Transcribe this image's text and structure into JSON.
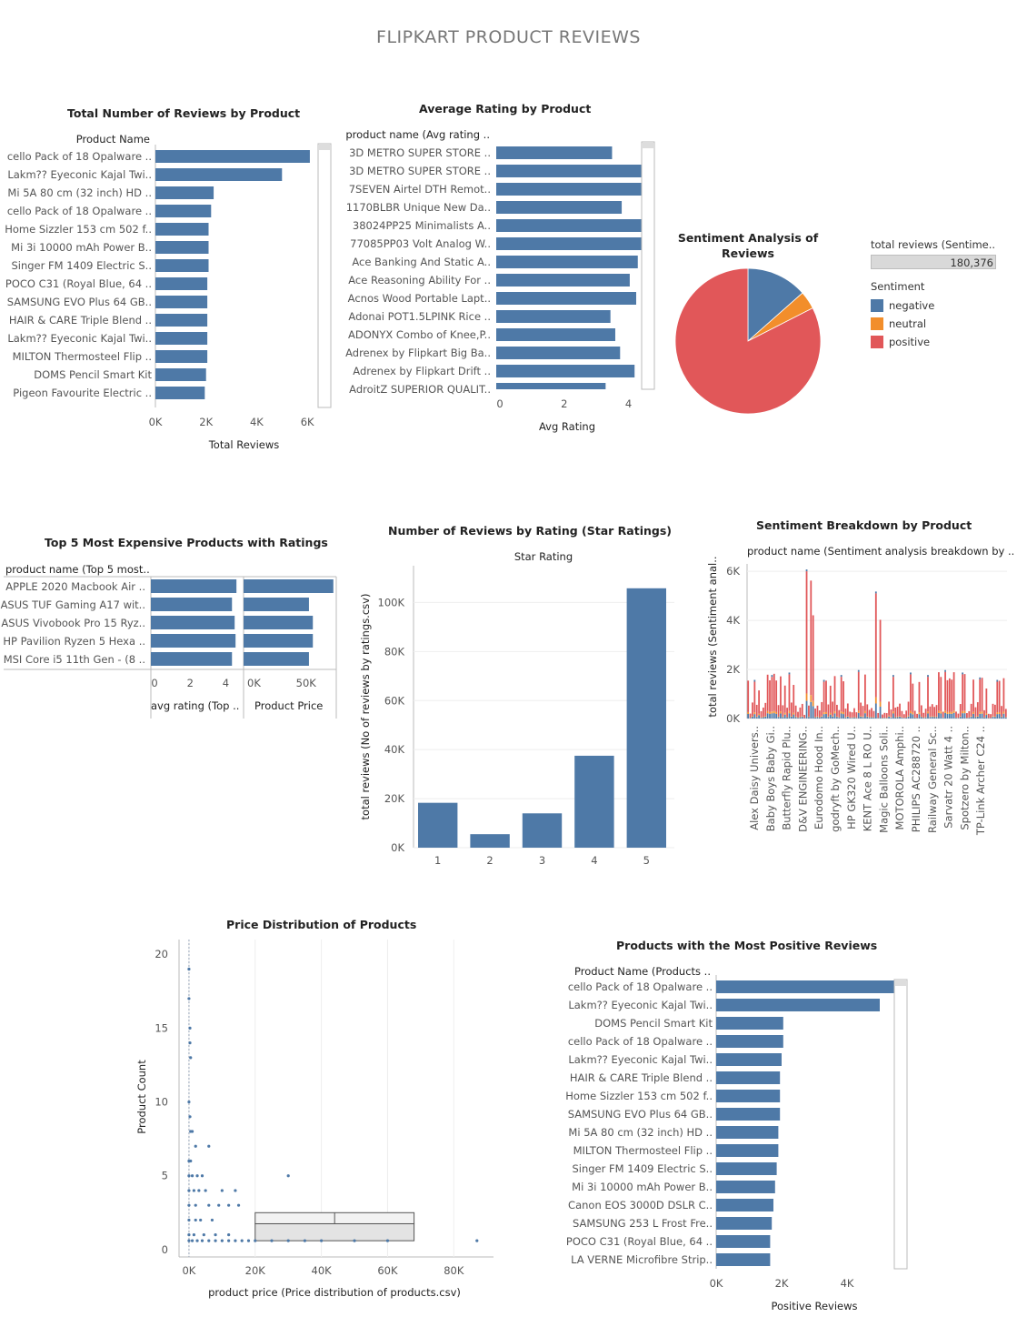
{
  "dashboard": {
    "title": "FLIPKART PRODUCT REVIEWS"
  },
  "colors": {
    "bar": "#4e79a7",
    "negative": "#4e79a7",
    "neutral": "#f28e2b",
    "positive": "#e15759",
    "axis": "#bbbbbb",
    "grid": "#eeeeee",
    "text": "#555555"
  },
  "chart_data": [
    {
      "id": "total-reviews",
      "type": "bar",
      "orientation": "horizontal",
      "title": "Total Number of Reviews by Product",
      "category_header": "Product Name",
      "xlabel": "Total Reviews",
      "xlim": [
        0,
        7000
      ],
      "xticks": [
        "0K",
        "2K",
        "4K",
        "6K"
      ],
      "xtick_values": [
        0,
        2000,
        4000,
        6000
      ],
      "categories": [
        "cello Pack of 18 Opalware ..",
        "Lakm?? Eyeconic Kajal Twi..",
        "Mi 5A 80 cm (32 inch) HD ..",
        "cello Pack of 18 Opalware ..",
        "Home Sizzler 153 cm 502 f..",
        "Mi 3i 10000 mAh Power B..",
        "Singer FM 1409 Electric S..",
        "POCO C31 (Royal Blue, 64 ..",
        "SAMSUNG EVO Plus 64 GB..",
        "HAIR & CARE Triple Blend ..",
        "Lakm?? Eyeconic Kajal Twi..",
        "MILTON Thermosteel Flip ..",
        "DOMS Pencil Smart Kit",
        "Pigeon Favourite Electric .."
      ],
      "values": [
        6100,
        5000,
        2300,
        2200,
        2100,
        2100,
        2100,
        2050,
        2050,
        2050,
        2050,
        2050,
        2000,
        1950
      ]
    },
    {
      "id": "avg-rating",
      "type": "bar",
      "orientation": "horizontal",
      "title": "Average Rating by Product",
      "category_header": "product name (Avg rating ..",
      "xlabel": "Avg Rating",
      "xlim": [
        0,
        5
      ],
      "xticks": [
        "0",
        "2",
        "4"
      ],
      "xtick_values": [
        0,
        2,
        4
      ],
      "categories": [
        "3D METRO SUPER STORE ..",
        "3D METRO SUPER STORE ..",
        "7SEVEN Airtel DTH Remot..",
        "1170BLBR Unique New Da..",
        "38024PP25 Minimalists A..",
        "77085PP03 Volt Analog W..",
        "Ace Banking And Static A..",
        "Ace Reasoning Ability For ..",
        "Acnos Wood Portable Lapt..",
        "Adonai POT1.5LPINK Rice ..",
        "ADONYX Combo of Knee,P..",
        "Adrenex by Flipkart Big Ba..",
        "Adrenex by Flipkart Drift ..",
        "AdroitZ SUPERIOR QUALIT.."
      ],
      "values": [
        3.6,
        4.7,
        4.6,
        3.9,
        4.8,
        4.65,
        4.4,
        4.15,
        4.35,
        3.55,
        3.7,
        3.85,
        4.3,
        3.4
      ]
    },
    {
      "id": "sentiment-pie",
      "type": "pie",
      "title": "Sentiment Analysis of Reviews",
      "legend_title": "Sentiment",
      "total_label": "total reviews (Sentime..",
      "total_value": "180,376",
      "categories": [
        "negative",
        "neutral",
        "positive"
      ],
      "values": [
        13.5,
        4.0,
        82.5
      ],
      "legend_position": "right"
    },
    {
      "id": "top5-expensive",
      "type": "bar",
      "orientation": "horizontal",
      "title": "Top 5 Most Expensive Products with Ratings",
      "category_header": "product name (Top 5 most..",
      "categories": [
        "APPLE 2020 Macbook Air ..",
        "ASUS TUF Gaming A17 wit..",
        "ASUS Vivobook Pro 15 Ryz..",
        "HP Pavilion Ryzen 5 Hexa ..",
        "MSI Core i5 11th Gen - (8 .."
      ],
      "series": [
        {
          "name": "avg rating (Top ..",
          "values": [
            4.8,
            4.55,
            4.7,
            4.75,
            4.55
          ],
          "xlim": [
            0,
            5.2
          ],
          "xticks": [
            "0",
            "2",
            "4"
          ],
          "xtick_values": [
            0,
            2,
            4
          ]
        },
        {
          "name": "Product Price",
          "values": [
            92000,
            67000,
            71000,
            71000,
            67000
          ],
          "xlim": [
            0,
            95000
          ],
          "xticks": [
            "0K",
            "50K"
          ],
          "xtick_values": [
            0,
            50000
          ]
        }
      ]
    },
    {
      "id": "star-ratings",
      "type": "bar",
      "title": "Number of Reviews by Rating (Star Ratings)",
      "xlabel": "Star Rating",
      "ylabel": "total reviews (No of reviews by ratings.csv)",
      "categories": [
        "1",
        "2",
        "3",
        "4",
        "5"
      ],
      "values": [
        18300,
        5500,
        14000,
        37500,
        105800
      ],
      "ylim": [
        0,
        115000
      ],
      "yticks": [
        "0K",
        "20K",
        "40K",
        "60K",
        "80K",
        "100K"
      ],
      "ytick_values": [
        0,
        20000,
        40000,
        60000,
        80000,
        100000
      ]
    },
    {
      "id": "sentiment-breakdown",
      "type": "bar",
      "stacked": true,
      "title": "Sentiment Breakdown by Product",
      "xlabel": "product name (Sentiment analysis breakdown by ..",
      "ylabel": "total reviews (Sentiment anal..",
      "ylim": [
        0,
        6300
      ],
      "yticks": [
        "0K",
        "2K",
        "4K",
        "6K"
      ],
      "ytick_values": [
        0,
        2000,
        4000,
        6000
      ],
      "tick_labels": [
        "Alex Daisy Univers..",
        "Baby Boys Baby Gi..",
        "Butterfly Rapid Plu..",
        "D&V ENGINEERING..",
        "Eurodomo Hood In..",
        "godryft by GoMech..",
        "HP GK320 Wired U..",
        "KENT Ace 8 L RO U..",
        "Magic Balloons Soli..",
        "MOTOROLA Amphi..",
        "PHILIPS AC288720 ..",
        "Railway General Sc..",
        "Sarvatr 20 Watt 4 ..",
        "Spotzero by Milton..",
        "TP-Link Archer C24 .."
      ],
      "series": [
        {
          "name": "negative",
          "peaks": [
            1500,
            1700,
            1800,
            6000,
            1500,
            1700,
            1900,
            5100,
            1700,
            1800,
            1700,
            1900,
            1800,
            1600,
            1500
          ]
        },
        {
          "name": "neutral",
          "peaks": [
            200,
            200,
            250,
            300,
            200,
            200,
            250,
            300,
            200,
            250,
            200,
            250,
            250,
            200,
            200
          ]
        },
        {
          "name": "positive",
          "peaks": [
            1300,
            1400,
            1500,
            5400,
            1300,
            1500,
            1700,
            4700,
            1500,
            1600,
            1500,
            1700,
            1600,
            1400,
            1300
          ]
        }
      ]
    },
    {
      "id": "price-distribution",
      "type": "scatter",
      "title": "Price Distribution of Products",
      "xlabel": "product price (Price distribution of products.csv)",
      "ylabel": "Product Count",
      "xlim": [
        -3000,
        92000
      ],
      "ylim": [
        -0.5,
        21
      ],
      "xticks": [
        "0K",
        "20K",
        "40K",
        "60K",
        "80K"
      ],
      "xtick_values": [
        0,
        20000,
        40000,
        60000,
        80000
      ],
      "yticks": [
        "0",
        "5",
        "10",
        "15",
        "20"
      ],
      "ytick_values": [
        0,
        5,
        10,
        15,
        20
      ],
      "points": [
        [
          0,
          19
        ],
        [
          0,
          17
        ],
        [
          300,
          15
        ],
        [
          300,
          14
        ],
        [
          500,
          13
        ],
        [
          0,
          10
        ],
        [
          300,
          9
        ],
        [
          500,
          8
        ],
        [
          1000,
          8
        ],
        [
          2000,
          7
        ],
        [
          6000,
          7
        ],
        [
          0,
          6
        ],
        [
          500,
          6
        ],
        [
          0,
          5
        ],
        [
          1000,
          5
        ],
        [
          2500,
          5
        ],
        [
          4000,
          5
        ],
        [
          30000,
          5
        ],
        [
          0,
          4
        ],
        [
          1500,
          4
        ],
        [
          3000,
          4
        ],
        [
          5000,
          4
        ],
        [
          10000,
          4
        ],
        [
          14000,
          4
        ],
        [
          0,
          3
        ],
        [
          2000,
          3
        ],
        [
          6000,
          3
        ],
        [
          9000,
          3
        ],
        [
          12000,
          3
        ],
        [
          15000,
          3
        ],
        [
          0,
          2
        ],
        [
          2000,
          2
        ],
        [
          3500,
          2
        ],
        [
          7000,
          2
        ],
        [
          0,
          1
        ],
        [
          1500,
          1
        ],
        [
          4500,
          1
        ],
        [
          8000,
          1
        ],
        [
          12000,
          1
        ],
        [
          0,
          0.6
        ],
        [
          1000,
          0.6
        ],
        [
          2500,
          0.6
        ],
        [
          4000,
          0.6
        ],
        [
          6000,
          0.6
        ],
        [
          8000,
          0.6
        ],
        [
          10000,
          0.6
        ],
        [
          12000,
          0.6
        ],
        [
          14000,
          0.6
        ],
        [
          16000,
          0.6
        ],
        [
          18000,
          0.6
        ],
        [
          20000,
          0.6
        ],
        [
          25000,
          0.6
        ],
        [
          30000,
          0.6
        ],
        [
          35000,
          0.6
        ],
        [
          40000,
          0.6
        ],
        [
          50000,
          0.6
        ],
        [
          60000,
          0.6
        ],
        [
          87000,
          0.6
        ]
      ],
      "boxplot": {
        "x_lower_whisker": 20000,
        "x_q1": 20000,
        "x_median": 44000,
        "x_q3": 68000,
        "x_upper_whisker": 68000
      }
    },
    {
      "id": "most-positive",
      "type": "bar",
      "orientation": "horizontal",
      "title": "Products with the Most Positive Reviews",
      "category_header": "Product Name (Products ..",
      "xlabel": "Positive Reviews",
      "xlim": [
        0,
        6000
      ],
      "xticks": [
        "0K",
        "2K",
        "4K"
      ],
      "xtick_values": [
        0,
        2000,
        4000
      ],
      "categories": [
        "cello Pack of 18 Opalware ..",
        "Lakm?? Eyeconic Kajal Twi..",
        "DOMS Pencil Smart Kit",
        "cello Pack of 18 Opalware ..",
        "Lakm?? Eyeconic Kajal Twi..",
        "HAIR & CARE Triple Blend ..",
        "Home Sizzler 153 cm 502 f..",
        "SAMSUNG EVO Plus 64 GB..",
        "Mi 5A 80 cm (32 inch) HD ..",
        "MILTON Thermosteel Flip ..",
        "Singer FM 1409 Electric S..",
        "Mi 3i 10000 mAh Power B..",
        "Canon EOS 3000D DSLR C..",
        "SAMSUNG 253 L Frost Fre..",
        "POCO C31 (Royal Blue, 64 ..",
        "LA VERNE Microfibre Strip.."
      ],
      "values": [
        5700,
        5000,
        2050,
        2050,
        2000,
        1950,
        1950,
        1950,
        1900,
        1900,
        1850,
        1800,
        1750,
        1700,
        1650,
        1650
      ]
    }
  ]
}
